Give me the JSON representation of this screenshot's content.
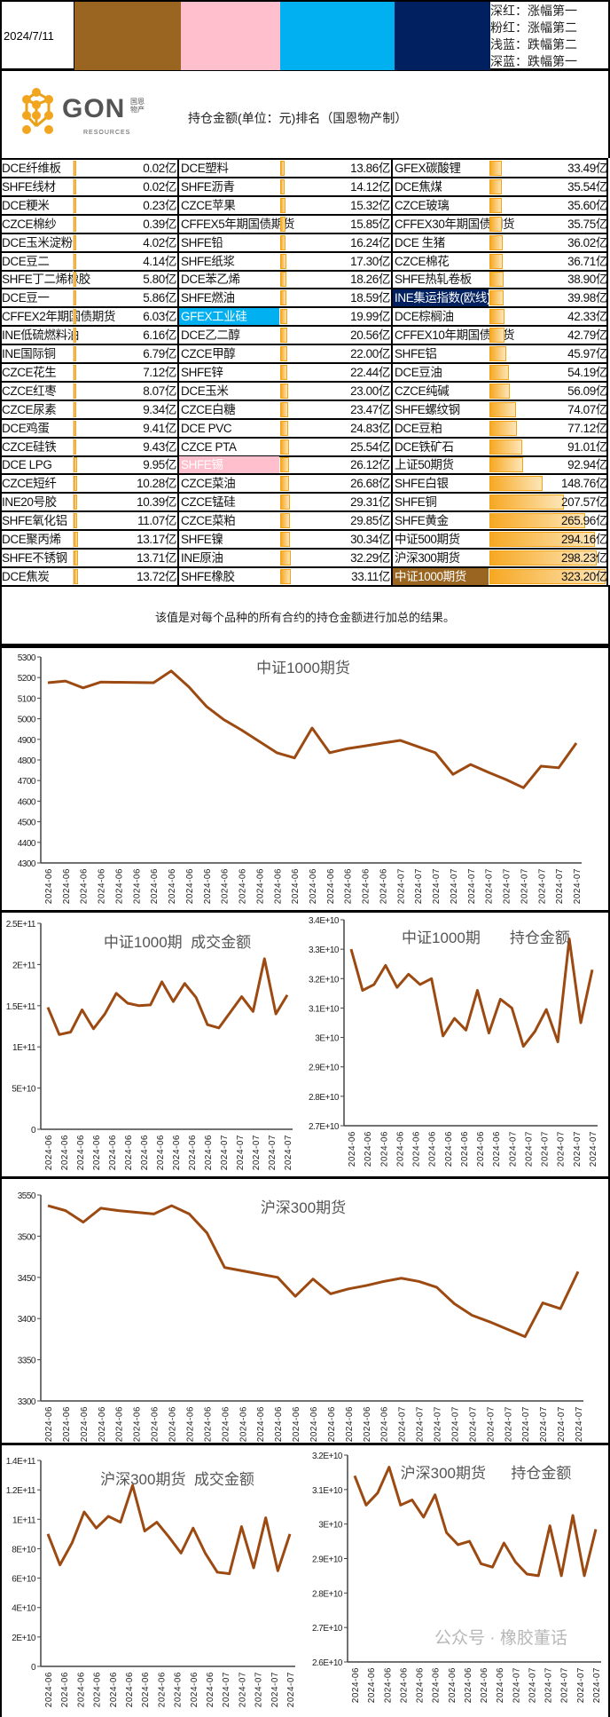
{
  "header": {
    "date": "2024/7/11",
    "swatches": [
      {
        "name": "deep-red",
        "color": "#996521"
      },
      {
        "name": "pink",
        "color": "#ffbfcc"
      },
      {
        "name": "light-blue",
        "color": "#00b0f0"
      },
      {
        "name": "deep-blue",
        "color": "#002060"
      }
    ],
    "legend": [
      "深红：涨幅第一",
      "粉红：涨幅第二",
      "浅蓝：跌幅第二",
      "深蓝：跌幅第一"
    ]
  },
  "logo": {
    "text": "GON",
    "sub": "RESOURCES",
    "cn": "国恩物产"
  },
  "title": "持仓金额(单位：元)排名（国恩物产制）",
  "unit": "亿",
  "highlight_colors": {
    "rise1": "#996521",
    "rise2": "#ffbfcc",
    "fall2": "#00b0f0",
    "fall1": "#002060"
  },
  "table": {
    "columns": [
      [
        {
          "name": "DCE纤维板",
          "value": "0.02"
        },
        {
          "name": "SHFE线材",
          "value": "0.02"
        },
        {
          "name": "DCE粳米",
          "value": "0.23"
        },
        {
          "name": "CZCE棉纱",
          "value": "0.39"
        },
        {
          "name": "DCE玉米淀粉",
          "value": "4.02"
        },
        {
          "name": "DCE豆二",
          "value": "4.14"
        },
        {
          "name": "SHFE丁二烯橡胶",
          "value": "5.80"
        },
        {
          "name": "DCE豆一",
          "value": "5.86"
        },
        {
          "name": "CFFEX2年期国债期货",
          "value": "6.03"
        },
        {
          "name": "INE低硫燃料油",
          "value": "6.16"
        },
        {
          "name": "INE国际铜",
          "value": "6.79"
        },
        {
          "name": "CZCE花生",
          "value": "7.12"
        },
        {
          "name": "CZCE红枣",
          "value": "8.07"
        },
        {
          "name": "CZCE尿素",
          "value": "9.34"
        },
        {
          "name": "DCE鸡蛋",
          "value": "9.41"
        },
        {
          "name": "CZCE硅铁",
          "value": "9.43"
        },
        {
          "name": "DCE LPG",
          "value": "9.95"
        },
        {
          "name": "CZCE短纤",
          "value": "10.28"
        },
        {
          "name": "INE20号胶",
          "value": "10.39"
        },
        {
          "name": "SHFE氧化铝",
          "value": "11.07"
        },
        {
          "name": "DCE聚丙烯",
          "value": "13.17"
        },
        {
          "name": "SHFE不锈钢",
          "value": "13.71"
        },
        {
          "name": "DCE焦炭",
          "value": "13.72"
        }
      ],
      [
        {
          "name": "DCE塑料",
          "value": "13.86"
        },
        {
          "name": "SHFE沥青",
          "value": "14.12"
        },
        {
          "name": "CZCE苹果",
          "value": "15.32"
        },
        {
          "name": "CFFEX5年期国债期货",
          "value": "15.85"
        },
        {
          "name": "SHFE铅",
          "value": "16.24"
        },
        {
          "name": "SHFE纸浆",
          "value": "17.30"
        },
        {
          "name": "DCE苯乙烯",
          "value": "18.26"
        },
        {
          "name": "SHFE燃油",
          "value": "18.59"
        },
        {
          "name": "GFEX工业硅",
          "value": "19.99",
          "hl": "fall2"
        },
        {
          "name": "DCE乙二醇",
          "value": "20.56"
        },
        {
          "name": "CZCE甲醇",
          "value": "22.00"
        },
        {
          "name": "SHFE锌",
          "value": "22.44"
        },
        {
          "name": "DCE玉米",
          "value": "23.00"
        },
        {
          "name": "CZCE白糖",
          "value": "23.47"
        },
        {
          "name": "DCE PVC",
          "value": "24.83"
        },
        {
          "name": "CZCE PTA",
          "value": "25.54"
        },
        {
          "name": "SHFE锡",
          "value": "26.12",
          "hl": "rise2"
        },
        {
          "name": "CZCE菜油",
          "value": "26.68"
        },
        {
          "name": "CZCE锰硅",
          "value": "29.31"
        },
        {
          "name": "CZCE菜粕",
          "value": "29.85"
        },
        {
          "name": "SHFE镍",
          "value": "30.34"
        },
        {
          "name": "INE原油",
          "value": "32.29"
        },
        {
          "name": "SHFE橡胶",
          "value": "33.11"
        }
      ],
      [
        {
          "name": "GFEX碳酸锂",
          "value": "33.49"
        },
        {
          "name": "DCE焦煤",
          "value": "35.54"
        },
        {
          "name": "CZCE玻璃",
          "value": "35.60"
        },
        {
          "name": "CFFEX30年期国债期货",
          "value": "35.75"
        },
        {
          "name": "DCE 生猪",
          "value": "36.02"
        },
        {
          "name": "CZCE棉花",
          "value": "36.71"
        },
        {
          "name": "SHFE热轧卷板",
          "value": "38.90"
        },
        {
          "name": "INE集运指数(欧线)",
          "value": "39.98",
          "hl": "fall1"
        },
        {
          "name": "DCE棕榈油",
          "value": "42.33"
        },
        {
          "name": "CFFEX10年期国债期货",
          "value": "42.79"
        },
        {
          "name": "SHFE铝",
          "value": "45.97"
        },
        {
          "name": "DCE豆油",
          "value": "54.19"
        },
        {
          "name": "CZCE纯碱",
          "value": "56.09"
        },
        {
          "name": "SHFE螺纹钢",
          "value": "74.07"
        },
        {
          "name": "DCE豆粕",
          "value": "77.12"
        },
        {
          "name": "DCE铁矿石",
          "value": "91.01"
        },
        {
          "name": "上证50期货",
          "value": "92.94"
        },
        {
          "name": "SHFE白银",
          "value": "148.76"
        },
        {
          "name": "SHFE铜",
          "value": "207.57"
        },
        {
          "name": "SHFE黄金",
          "value": "265.96"
        },
        {
          "name": "中证500期货",
          "value": "294.16"
        },
        {
          "name": "沪深300期货",
          "value": "298.23"
        },
        {
          "name": "中证1000期货",
          "value": "323.20",
          "hl": "rise1"
        }
      ]
    ]
  },
  "note": "该值是对每个品种的所有合约的持仓金额进行加总的结果。",
  "chart_data": [
    {
      "type": "line",
      "title": "中证1000期货",
      "color": "#9c4a12",
      "ylim": [
        4300,
        5300
      ],
      "yticks": [
        "4300",
        "4400",
        "4500",
        "4600",
        "4700",
        "4800",
        "4900",
        "5000",
        "5100",
        "5200",
        "5300"
      ],
      "xticks": [
        "2024-06",
        "2024-06",
        "2024-06",
        "2024-06",
        "2024-06",
        "2024-06",
        "2024-06",
        "2024-06",
        "2024-06",
        "2024-06",
        "2024-06",
        "2024-06",
        "2024-06",
        "2024-06",
        "2024-06",
        "2024-06",
        "2024-06",
        "2024-06",
        "2024-06",
        "2024-06",
        "2024-07",
        "2024-07",
        "2024-07",
        "2024-07",
        "2024-07",
        "2024-07",
        "2024-07",
        "2024-07",
        "2024-07",
        "2024-07",
        "2024-07"
      ],
      "values": [
        5175,
        5183,
        5150,
        5178,
        5177,
        5176,
        5175,
        5232,
        5155,
        5060,
        4995,
        4945,
        4890,
        4835,
        4810,
        4955,
        4835,
        4855,
        4868,
        4882,
        4895,
        4865,
        4835,
        4730,
        4778,
        4740,
        4705,
        4665,
        4770,
        4762,
        4882
      ]
    },
    {
      "type": "line",
      "title": "中证1000期  成交金额",
      "color": "#9c4a12",
      "ylim": [
        0,
        250000000000
      ],
      "yticks": [
        "0",
        "5E+10",
        "1E+11",
        "1.5E+11",
        "2E+11",
        "2.5E+11"
      ],
      "xticks": [
        "2024-06",
        "2024-06",
        "2024-06",
        "2024-06",
        "2024-06",
        "2024-06",
        "2024-06",
        "2024-06",
        "2024-06",
        "2024-06",
        "2024-06",
        "2024-07",
        "2024-07",
        "2024-07",
        "2024-07",
        "2024-07"
      ],
      "values": [
        148000000000,
        115000000000,
        118000000000,
        145000000000,
        122000000000,
        140000000000,
        165000000000,
        153000000000,
        150000000000,
        151000000000,
        179000000000,
        155000000000,
        177000000000,
        160000000000,
        127000000000,
        123000000000,
        142000000000,
        161000000000,
        143000000000,
        207000000000,
        140000000000,
        163000000000
      ]
    },
    {
      "type": "line",
      "title": "中证1000期       持仓金额",
      "color": "#9c4a12",
      "ylim": [
        27000000000,
        34000000000
      ],
      "yticks": [
        "2.7E+10",
        "2.8E+10",
        "2.9E+10",
        "3E+10",
        "3.1E+10",
        "3.2E+10",
        "3.3E+10",
        "3.4E+10"
      ],
      "xticks": [
        "2024-06",
        "2024-06",
        "2024-06",
        "2024-06",
        "2024-06",
        "2024-06",
        "2024-06",
        "2024-06",
        "2024-06",
        "2024-06",
        "2024-07",
        "2024-07",
        "2024-07",
        "2024-07",
        "2024-07",
        "2024-07"
      ],
      "values": [
        33000000000,
        31600000000,
        31800000000,
        32450000000,
        31700000000,
        32150000000,
        31800000000,
        32000000000,
        30050000000,
        30650000000,
        30250000000,
        31600000000,
        30150000000,
        31300000000,
        31000000000,
        29700000000,
        30200000000,
        30950000000,
        29850000000,
        33350000000,
        30500000000,
        32300000000
      ]
    },
    {
      "type": "line",
      "title": "沪深300期货",
      "color": "#9c4a12",
      "ylim": [
        3300,
        3550
      ],
      "yticks": [
        "3300",
        "3350",
        "3400",
        "3450",
        "3500",
        "3550"
      ],
      "xticks": [
        "2024-06",
        "2024-06",
        "2024-06",
        "2024-06",
        "2024-06",
        "2024-06",
        "2024-06",
        "2024-06",
        "2024-06",
        "2024-06",
        "2024-06",
        "2024-06",
        "2024-06",
        "2024-06",
        "2024-06",
        "2024-06",
        "2024-06",
        "2024-06",
        "2024-06",
        "2024-06",
        "2024-07",
        "2024-07",
        "2024-07",
        "2024-07",
        "2024-07",
        "2024-07",
        "2024-07",
        "2024-07",
        "2024-07",
        "2024-07",
        "2024-07"
      ],
      "values": [
        3537,
        3531,
        3517,
        3534,
        3531,
        3529,
        3527,
        3537,
        3527,
        3504,
        3462,
        3458,
        3454,
        3450,
        3427,
        3448,
        3430,
        3436,
        3440,
        3445,
        3449,
        3445,
        3438,
        3418,
        3404,
        3396,
        3387,
        3378,
        3419,
        3412,
        3457
      ]
    },
    {
      "type": "line",
      "title": "沪深300期货  成交金额",
      "color": "#9c4a12",
      "ylim": [
        0,
        140000000000
      ],
      "yticks": [
        "0",
        "2E+10",
        "4E+10",
        "6E+10",
        "8E+10",
        "1E+11",
        "1.2E+11",
        "1.4E+11"
      ],
      "xticks": [
        "2024-06",
        "2024-06",
        "2024-06",
        "2024-06",
        "2024-06",
        "2024-06",
        "2024-06",
        "2024-06",
        "2024-06",
        "2024-06",
        "2024-06",
        "2024-07",
        "2024-07",
        "2024-07",
        "2024-07",
        "2024-07"
      ],
      "values": [
        90000000000,
        69000000000,
        84000000000,
        105000000000,
        94000000000,
        102000000000,
        98000000000,
        123000000000,
        92000000000,
        98000000000,
        88000000000,
        77000000000,
        94000000000,
        77000000000,
        64000000000,
        63000000000,
        95000000000,
        67000000000,
        101000000000,
        65000000000,
        90000000000
      ]
    },
    {
      "type": "line",
      "title": "沪深300期货      持仓金额",
      "color": "#9c4a12",
      "ylim": [
        26000000000,
        32000000000
      ],
      "yticks": [
        "2.6E+10",
        "2.7E+10",
        "2.8E+10",
        "2.9E+10",
        "3E+10",
        "3.1E+10",
        "3.2E+10"
      ],
      "xticks": [
        "2024-06",
        "2024-06",
        "2024-06",
        "2024-06",
        "2024-06",
        "2024-06",
        "2024-06",
        "2024-06",
        "2024-06",
        "2024-06",
        "2024-07",
        "2024-07",
        "2024-07",
        "2024-07",
        "2024-07",
        "2024-07"
      ],
      "values": [
        31400000000,
        30550000000,
        30900000000,
        31650000000,
        30550000000,
        30700000000,
        30200000000,
        30850000000,
        29750000000,
        29400000000,
        29500000000,
        28850000000,
        28750000000,
        29450000000,
        28900000000,
        28550000000,
        28500000000,
        29950000000,
        28500000000,
        30250000000,
        28500000000,
        29850000000
      ]
    }
  ],
  "watermark": "公众号 · 橡胶董话"
}
